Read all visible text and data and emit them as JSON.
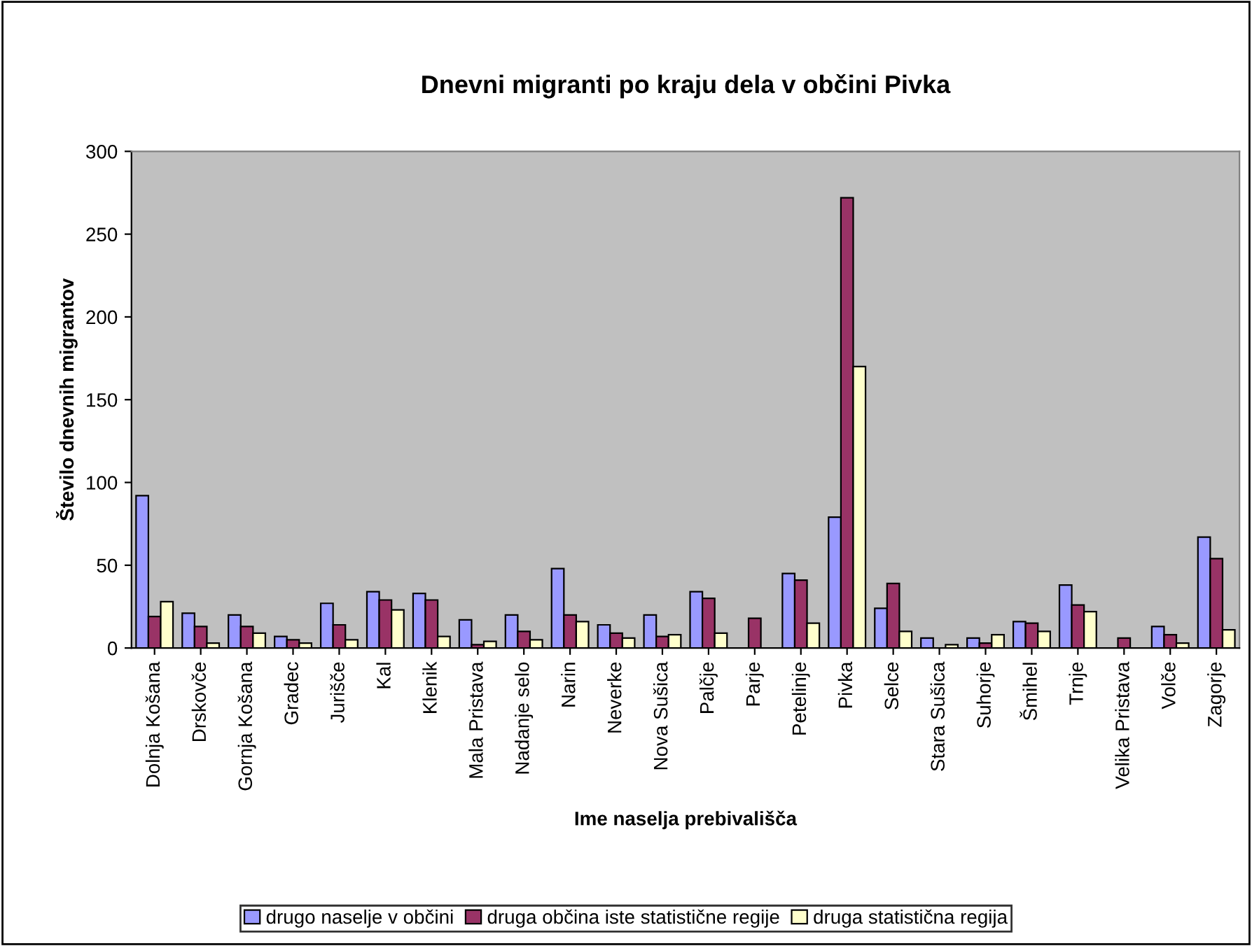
{
  "chart_data": {
    "type": "bar",
    "title": "Dnevni migranti po kraju dela v občini Pivka",
    "xlabel": "Ime naselja prebivališča",
    "ylabel": "Število dnevnih migrantov",
    "categories": [
      "Dolnja Košana",
      "Drskovče",
      "Gornja Košana",
      "Gradec",
      "Jurišče",
      "Kal",
      "Klenik",
      "Mala Pristava",
      "Nadanje selo",
      "Narin",
      "Neverke",
      "Nova Sušica",
      "Palčje",
      "Parje",
      "Petelinje",
      "Pivka",
      "Selce",
      "Stara Sušica",
      "Suhorje",
      "Šmihel",
      "Trnje",
      "Velika Pristava",
      "Volče",
      "Zagorje"
    ],
    "series": [
      {
        "name": "drugo naselje v občini",
        "color": "#9999ff",
        "values": [
          92,
          21,
          20,
          7,
          27,
          34,
          33,
          17,
          20,
          48,
          14,
          20,
          34,
          null,
          45,
          79,
          24,
          6,
          6,
          16,
          38,
          null,
          13,
          67
        ]
      },
      {
        "name": "druga občina iste statistične regije",
        "color": "#993366",
        "values": [
          19,
          13,
          13,
          5,
          14,
          29,
          29,
          2,
          10,
          20,
          9,
          7,
          30,
          18,
          41,
          272,
          39,
          null,
          3,
          15,
          26,
          6,
          8,
          54
        ]
      },
      {
        "name": "druga statistična regija",
        "color": "#ffffcc",
        "values": [
          28,
          3,
          9,
          3,
          5,
          23,
          7,
          4,
          5,
          16,
          6,
          8,
          9,
          null,
          15,
          170,
          10,
          2,
          8,
          10,
          22,
          null,
          3,
          11
        ]
      }
    ],
    "ylim": [
      0,
      300
    ],
    "yticks": [
      0,
      50,
      100,
      150,
      200,
      250,
      300
    ],
    "grid": false,
    "legend": "bottom"
  }
}
